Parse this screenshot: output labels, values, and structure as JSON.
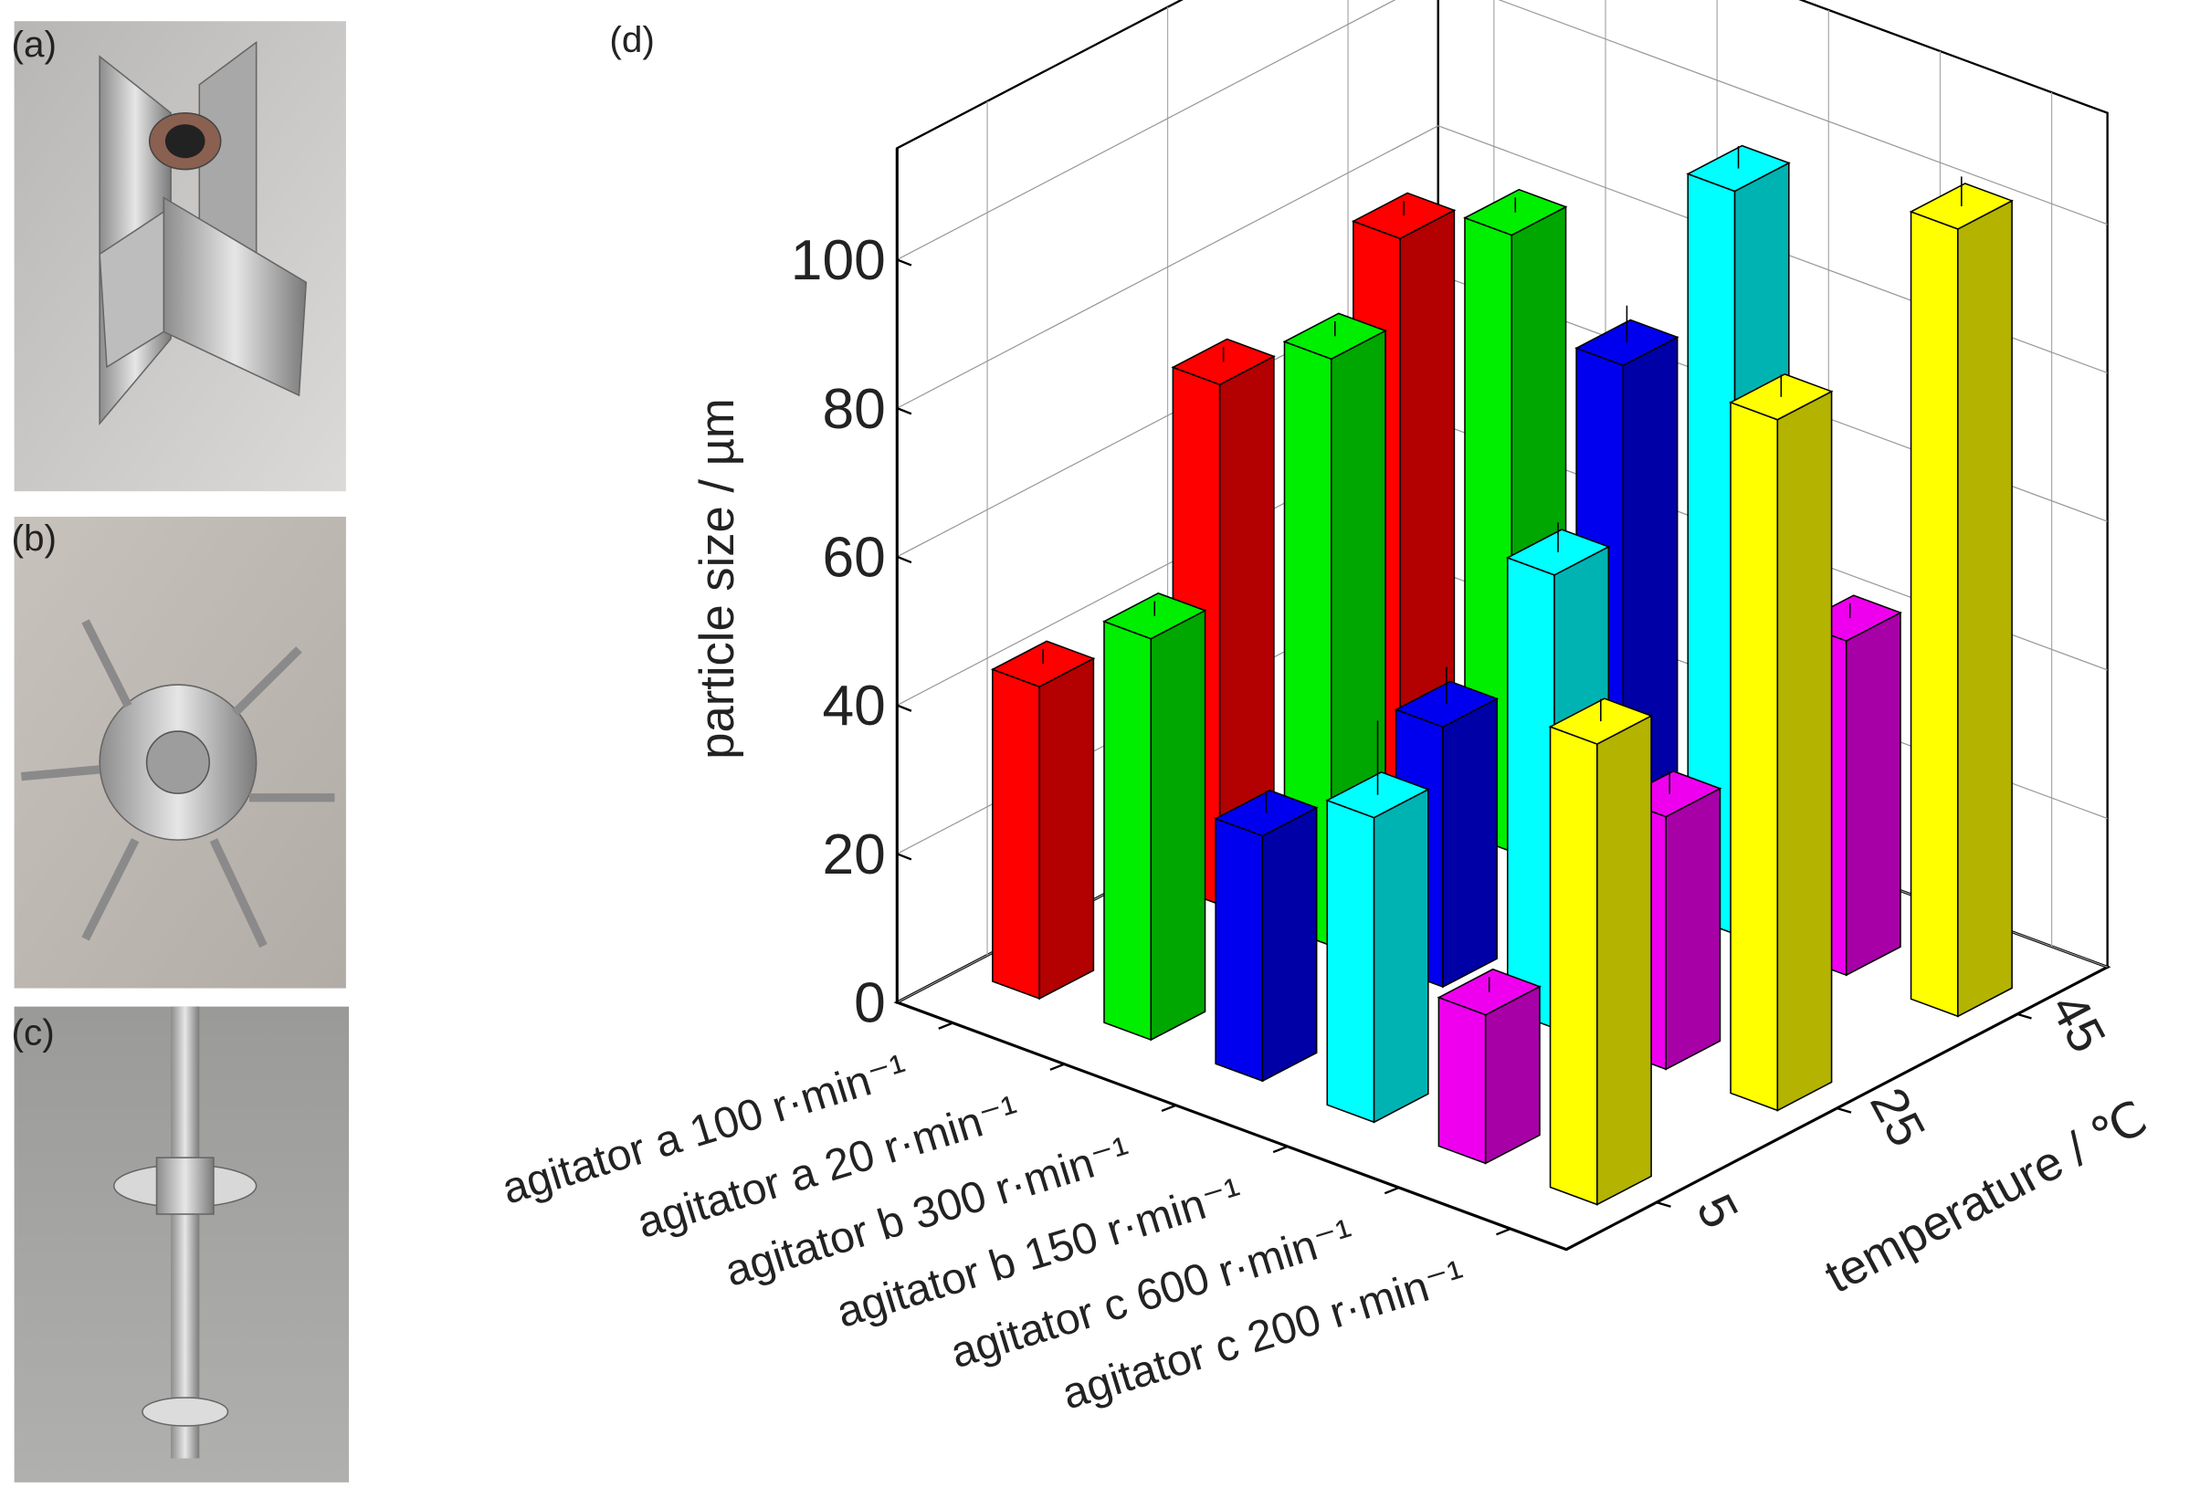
{
  "panels": [
    "(a)",
    "(b)",
    "(c)"
  ],
  "chart_data": {
    "type": "bar3d",
    "title": "(d)",
    "ylabel": "particle size / µm",
    "series_axis_label": "temperature / ℃",
    "categories": [
      "agitator a 100 r·min⁻¹",
      "agitator a 20 r·min⁻¹",
      "agitator b 300 r·min⁻¹",
      "agitator b 150 r·min⁻¹",
      "agitator c 600 r·min⁻¹",
      "agitator c 200 r·min⁻¹"
    ],
    "colors": [
      "#ff0000",
      "#00ee00",
      "#0000ee",
      "#00ffff",
      "#ee00ee",
      "#ffff00"
    ],
    "series": [
      {
        "name": "5",
        "values": [
          42,
          54,
          33,
          41,
          20,
          62
        ],
        "errors": [
          2,
          2,
          3,
          10,
          2,
          3
        ]
      },
      {
        "name": "25",
        "values": [
          70,
          79,
          35,
          61,
          34,
          93
        ],
        "errors": [
          2,
          2,
          5,
          4,
          3,
          3
        ]
      },
      {
        "name": "45",
        "values": [
          77,
          83,
          71,
          100,
          45,
          106
        ],
        "errors": [
          2,
          2,
          5,
          3,
          2,
          4
        ]
      }
    ],
    "ylim": [
      0,
      115
    ],
    "yticks": [
      0,
      20,
      40,
      60,
      80,
      100
    ],
    "grid": true
  }
}
